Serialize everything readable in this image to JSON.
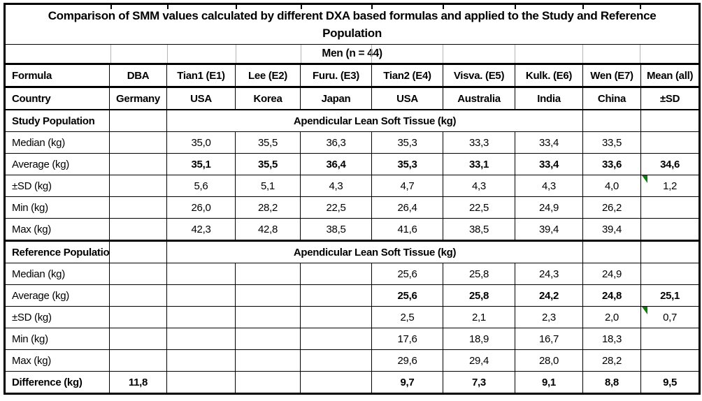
{
  "title": "Comparison of SMM values calculated by different DXA based formulas and applied to the Study and Reference Population",
  "subtitle": "Men (n = 44)",
  "colors": {
    "border": "#000000",
    "error_flag_green": "#0e7c0e",
    "faint_grid": "#b5b5b5"
  },
  "table": {
    "formula_row": [
      "Formula",
      "DBA",
      "Tian1 (E1)",
      "Lee (E2)",
      "Furu. (E3)",
      "Tian2 (E4)",
      "Visva. (E5)",
      "Kulk. (E6)",
      "Wen (E7)",
      "Mean (all)"
    ],
    "country_row": [
      "Country",
      "Germany",
      "USA",
      "Korea",
      "Japan",
      "USA",
      "Australia",
      "India",
      "China",
      "±SD"
    ],
    "sections": [
      {
        "label": "Study Population",
        "merged_header": "Apendicular Lean Soft Tissue (kg)",
        "rows": [
          {
            "label": "Median (kg)",
            "dba": "",
            "values": [
              "35,0",
              "35,5",
              "36,3",
              "35,3",
              "33,3",
              "33,4",
              "33,5"
            ],
            "mean": "",
            "bold": false,
            "flag": false
          },
          {
            "label": "Average (kg)",
            "dba": "",
            "values": [
              "35,1",
              "35,5",
              "36,4",
              "35,3",
              "33,1",
              "33,4",
              "33,6"
            ],
            "mean": "34,6",
            "bold": true,
            "flag": false
          },
          {
            "label": "±SD (kg)",
            "dba": "",
            "values": [
              "5,6",
              "5,1",
              "4,3",
              "4,7",
              "4,3",
              "4,3",
              "4,0"
            ],
            "mean": "1,2",
            "bold": false,
            "flag": true
          },
          {
            "label": "Min (kg)",
            "dba": "",
            "values": [
              "26,0",
              "28,2",
              "22,5",
              "26,4",
              "22,5",
              "24,9",
              "26,2"
            ],
            "mean": "",
            "bold": false,
            "flag": false
          },
          {
            "label": "Max (kg)",
            "dba": "",
            "values": [
              "42,3",
              "42,8",
              "38,5",
              "41,6",
              "38,5",
              "39,4",
              "39,4"
            ],
            "mean": "",
            "bold": false,
            "flag": false
          }
        ]
      },
      {
        "label": "Reference Population",
        "merged_header": "Apendicular Lean Soft Tissue (kg)",
        "rows": [
          {
            "label": "Median (kg)",
            "dba": "",
            "values": [
              "",
              "",
              "",
              "25,6",
              "25,8",
              "24,3",
              "24,9"
            ],
            "mean": "",
            "bold": false,
            "flag": false
          },
          {
            "label": "Average (kg)",
            "dba": "",
            "values": [
              "",
              "",
              "",
              "25,6",
              "25,8",
              "24,2",
              "24,8"
            ],
            "mean": "25,1",
            "bold": true,
            "flag": false
          },
          {
            "label": "±SD (kg)",
            "dba": "",
            "values": [
              "",
              "",
              "",
              "2,5",
              "2,1",
              "2,3",
              "2,0"
            ],
            "mean": "0,7",
            "bold": false,
            "flag": true
          },
          {
            "label": "Min (kg)",
            "dba": "",
            "values": [
              "",
              "",
              "",
              "17,6",
              "18,9",
              "16,7",
              "18,3"
            ],
            "mean": "",
            "bold": false,
            "flag": false
          },
          {
            "label": "Max (kg)",
            "dba": "",
            "values": [
              "",
              "",
              "",
              "29,6",
              "29,4",
              "28,0",
              "28,2"
            ],
            "mean": "",
            "bold": false,
            "flag": false
          }
        ]
      }
    ],
    "difference_row": {
      "label": "Difference (kg)",
      "dba": "11,8",
      "values": [
        "",
        "",
        "",
        "9,7",
        "7,3",
        "9,1",
        "8,8"
      ],
      "mean": "9,5",
      "bold": true,
      "flag": false
    }
  }
}
